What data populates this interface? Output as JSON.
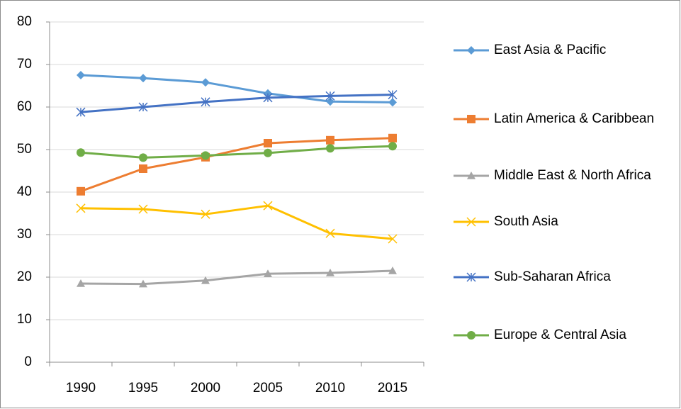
{
  "chart_data": {
    "type": "line",
    "categories": [
      "1990",
      "1995",
      "2000",
      "2005",
      "2010",
      "2015"
    ],
    "series": [
      {
        "name": "East Asia & Pacific",
        "color": "#5b9bd5",
        "marker": "diamond",
        "values": [
          67.5,
          66.8,
          65.8,
          63.2,
          61.3,
          61.1
        ]
      },
      {
        "name": "Latin America & Caribbean",
        "color": "#ed7d31",
        "marker": "square",
        "values": [
          40.2,
          45.5,
          48.2,
          51.5,
          52.2,
          52.7
        ]
      },
      {
        "name": "Middle East & North Africa",
        "color": "#a5a5a5",
        "marker": "triangle",
        "values": [
          18.5,
          18.4,
          19.2,
          20.8,
          21.0,
          21.5
        ]
      },
      {
        "name": "South Asia",
        "color": "#ffc000",
        "marker": "x",
        "values": [
          36.2,
          36.0,
          34.8,
          36.8,
          30.3,
          29.0
        ]
      },
      {
        "name": "Sub-Saharan Africa",
        "color": "#4472c4",
        "marker": "star",
        "values": [
          58.8,
          60.0,
          61.2,
          62.2,
          62.6,
          62.9
        ]
      },
      {
        "name": "Europe & Central Asia",
        "color": "#70ad47",
        "marker": "circle",
        "values": [
          49.3,
          48.1,
          48.6,
          49.2,
          50.3,
          50.8
        ]
      }
    ],
    "ylim": [
      0,
      80
    ],
    "yticks": [
      0,
      10,
      20,
      30,
      40,
      50,
      60,
      70,
      80
    ],
    "grid": true,
    "legend": "right"
  }
}
